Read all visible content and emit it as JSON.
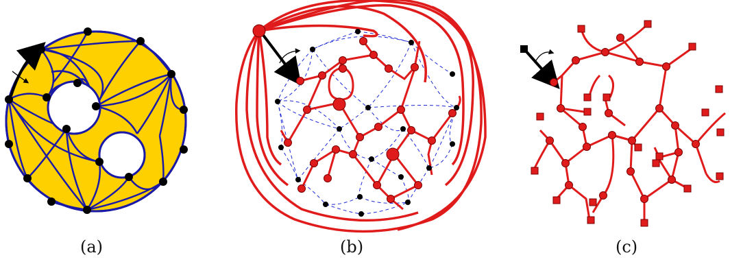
{
  "colors": {
    "fill_yellow": "#FFD000",
    "outline_blue": "#1A1AA6",
    "tree_red": "#E01B1B",
    "dash_blue": "#1E2AD6",
    "node_black": "#000000"
  },
  "panels": [
    {
      "id": "a",
      "caption": "(a)"
    },
    {
      "id": "b",
      "caption": "(b)"
    },
    {
      "id": "c",
      "caption": "(c)"
    }
  ]
}
